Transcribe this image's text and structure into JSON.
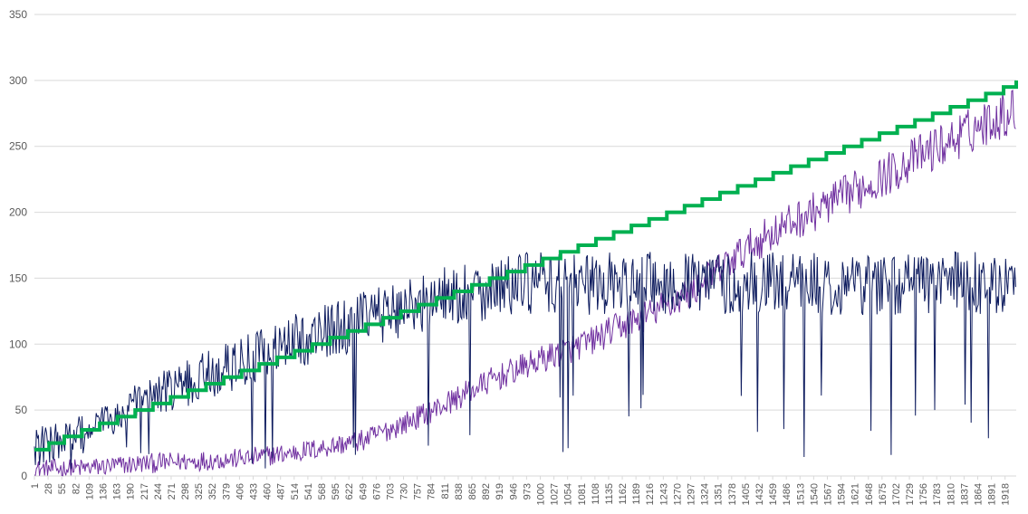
{
  "chart_data": {
    "type": "line",
    "ylim": [
      0,
      350
    ],
    "yticks": [
      0,
      50,
      100,
      150,
      200,
      250,
      300,
      350
    ],
    "x_range": [
      1,
      1940
    ],
    "xtick_labels": [
      1,
      28,
      55,
      82,
      109,
      136,
      163,
      190,
      217,
      244,
      271,
      298,
      325,
      352,
      379,
      406,
      433,
      460,
      487,
      514,
      541,
      568,
      595,
      622,
      649,
      676,
      703,
      730,
      757,
      784,
      811,
      838,
      865,
      892,
      919,
      946,
      973,
      1000,
      1027,
      1054,
      1081,
      1108,
      1135,
      1162,
      1189,
      1216,
      1243,
      1270,
      1297,
      1324,
      1351,
      1378,
      1405,
      1432,
      1459,
      1486,
      1513,
      1540,
      1567,
      1594,
      1621,
      1648,
      1675,
      1702,
      1729,
      1756,
      1783,
      1810,
      1837,
      1864,
      1891,
      1918
    ],
    "grid": "horizontal",
    "legend": "none",
    "series": [
      {
        "color": "#00B050",
        "style": "step",
        "steps": [
          [
            1,
            20
          ],
          [
            30,
            25
          ],
          [
            60,
            30
          ],
          [
            95,
            35
          ],
          [
            130,
            40
          ],
          [
            165,
            45
          ],
          [
            200,
            50
          ],
          [
            235,
            55
          ],
          [
            270,
            60
          ],
          [
            305,
            65
          ],
          [
            340,
            70
          ],
          [
            375,
            75
          ],
          [
            410,
            80
          ],
          [
            445,
            85
          ],
          [
            480,
            90
          ],
          [
            515,
            95
          ],
          [
            550,
            100
          ],
          [
            585,
            105
          ],
          [
            620,
            110
          ],
          [
            655,
            115
          ],
          [
            690,
            120
          ],
          [
            725,
            125
          ],
          [
            760,
            130
          ],
          [
            795,
            135
          ],
          [
            830,
            140
          ],
          [
            865,
            145
          ],
          [
            900,
            150
          ],
          [
            935,
            155
          ],
          [
            970,
            160
          ],
          [
            1005,
            165
          ],
          [
            1040,
            170
          ],
          [
            1075,
            175
          ],
          [
            1110,
            180
          ],
          [
            1145,
            185
          ],
          [
            1180,
            190
          ],
          [
            1215,
            195
          ],
          [
            1250,
            200
          ],
          [
            1285,
            205
          ],
          [
            1320,
            210
          ],
          [
            1355,
            215
          ],
          [
            1390,
            220
          ],
          [
            1425,
            225
          ],
          [
            1460,
            230
          ],
          [
            1495,
            235
          ],
          [
            1530,
            240
          ],
          [
            1565,
            245
          ],
          [
            1600,
            250
          ],
          [
            1635,
            255
          ],
          [
            1670,
            260
          ],
          [
            1705,
            265
          ],
          [
            1740,
            270
          ],
          [
            1775,
            275
          ],
          [
            1810,
            280
          ],
          [
            1845,
            285
          ],
          [
            1880,
            290
          ],
          [
            1915,
            295
          ],
          [
            1940,
            300
          ]
        ]
      },
      {
        "color": "#7030A0",
        "style": "noisy",
        "trend": [
          [
            1,
            5
          ],
          [
            100,
            6
          ],
          [
            200,
            9
          ],
          [
            300,
            11
          ],
          [
            400,
            13
          ],
          [
            500,
            17
          ],
          [
            550,
            20
          ],
          [
            650,
            27
          ],
          [
            700,
            35
          ],
          [
            750,
            43
          ],
          [
            800,
            52
          ],
          [
            850,
            62
          ],
          [
            900,
            72
          ],
          [
            950,
            80
          ],
          [
            1000,
            88
          ],
          [
            1050,
            95
          ],
          [
            1100,
            102
          ],
          [
            1150,
            112
          ],
          [
            1200,
            120
          ],
          [
            1250,
            130
          ],
          [
            1300,
            140
          ],
          [
            1350,
            155
          ],
          [
            1400,
            170
          ],
          [
            1450,
            183
          ],
          [
            1500,
            193
          ],
          [
            1550,
            202
          ],
          [
            1600,
            212
          ],
          [
            1650,
            222
          ],
          [
            1700,
            232
          ],
          [
            1750,
            243
          ],
          [
            1800,
            252
          ],
          [
            1850,
            262
          ],
          [
            1900,
            272
          ],
          [
            1940,
            278
          ]
        ],
        "noise": 12
      },
      {
        "color": "#0D1B5E",
        "style": "noisy",
        "trend": [
          [
            1,
            22
          ],
          [
            50,
            26
          ],
          [
            100,
            32
          ],
          [
            150,
            42
          ],
          [
            200,
            52
          ],
          [
            250,
            62
          ],
          [
            300,
            70
          ],
          [
            350,
            78
          ],
          [
            400,
            85
          ],
          [
            450,
            92
          ],
          [
            500,
            100
          ],
          [
            550,
            106
          ],
          [
            600,
            112
          ],
          [
            650,
            118
          ],
          [
            700,
            124
          ],
          [
            750,
            130
          ],
          [
            800,
            135
          ],
          [
            850,
            139
          ],
          [
            900,
            142
          ],
          [
            950,
            145
          ],
          [
            1000,
            146
          ],
          [
            1100,
            146
          ],
          [
            1940,
            146
          ]
        ],
        "noise": 22
      }
    ]
  }
}
